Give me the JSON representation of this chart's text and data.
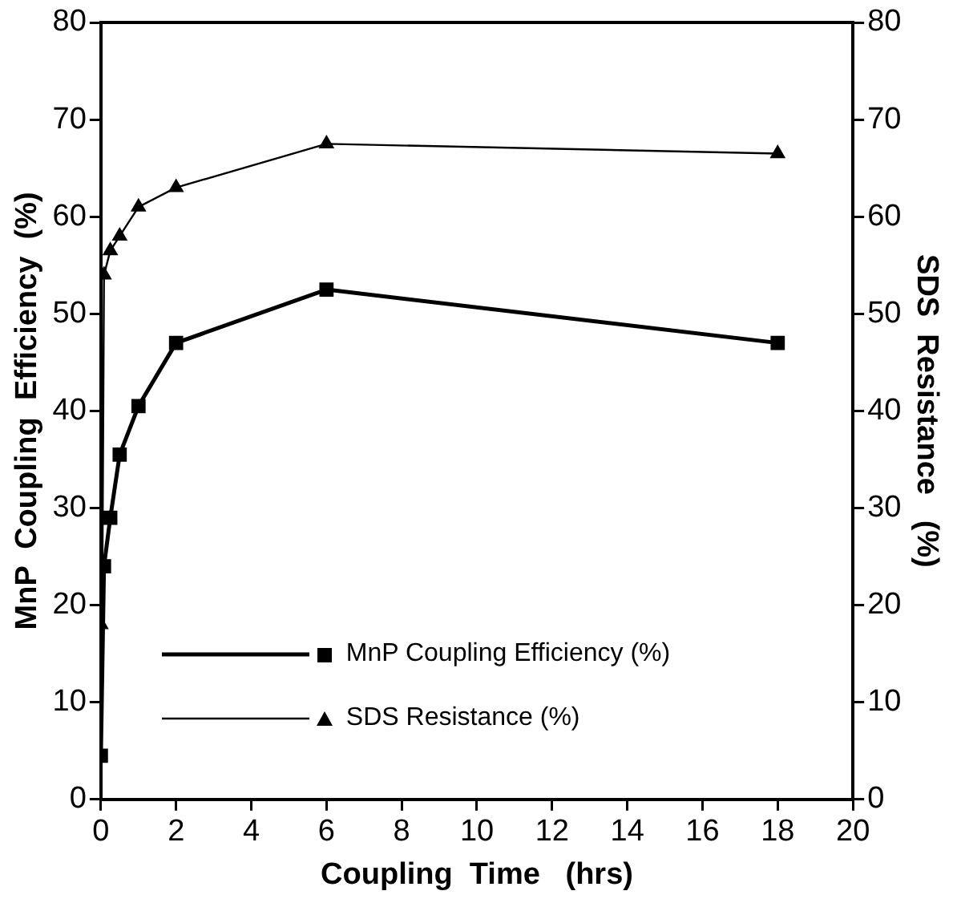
{
  "chart_data": {
    "type": "line",
    "xlabel": "Coupling  Time   (hrs)",
    "ylabel": "MnP  Coupling  Efficiency  (%)",
    "y2label": "SDS  Resistance   (%)",
    "xlim": [
      0,
      20
    ],
    "xticks": [
      0,
      2,
      4,
      6,
      8,
      10,
      12,
      14,
      16,
      18,
      20
    ],
    "ylim": [
      0,
      80
    ],
    "yticks": [
      0,
      10,
      20,
      30,
      40,
      50,
      60,
      70,
      80
    ],
    "y2lim": [
      0,
      80
    ],
    "y2ticks": [
      0,
      10,
      20,
      30,
      40,
      50,
      60,
      70,
      80
    ],
    "grid": false,
    "legend": "bottom left",
    "series": [
      {
        "name": "MnP Coupling Efficiency (%)",
        "color": "#000000",
        "marker": "square",
        "x": [
          0,
          0.083,
          0.25,
          0.5,
          1,
          2,
          6,
          18
        ],
        "values": [
          4.5,
          24,
          29,
          35.5,
          40.5,
          47,
          52.5,
          47
        ]
      },
      {
        "name": "SDS Resistance (%)",
        "color": "#000000",
        "marker": "triangle",
        "axis": "y2",
        "x": [
          0,
          0.042,
          0.083,
          0.25,
          0.5,
          1,
          2,
          6,
          18
        ],
        "values": [
          18,
          24,
          54,
          56.5,
          58,
          61,
          63,
          67.5,
          66.5
        ]
      }
    ]
  }
}
